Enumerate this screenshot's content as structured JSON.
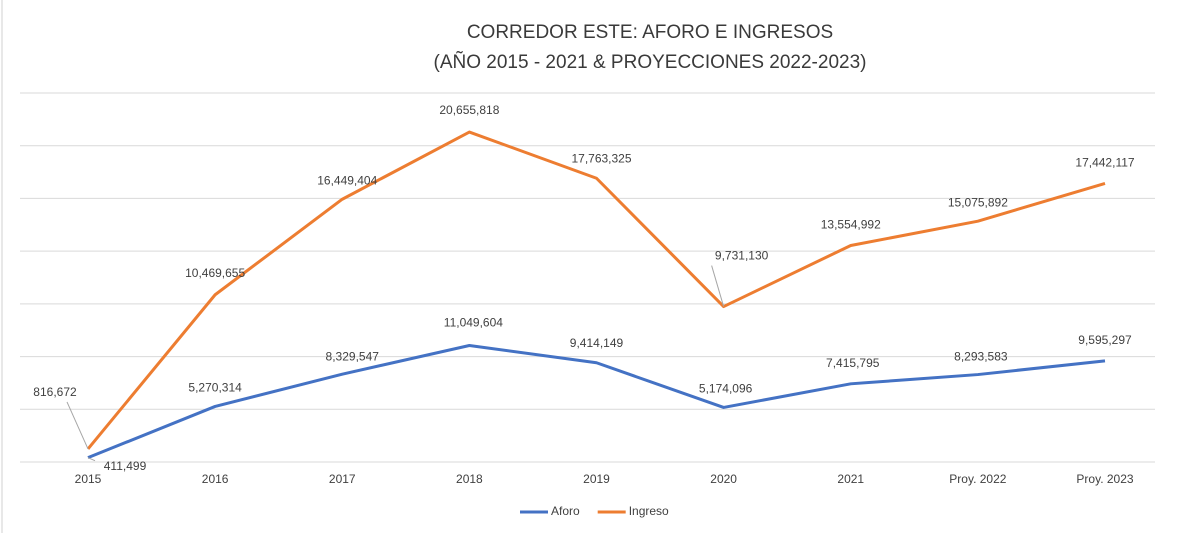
{
  "chart_data": {
    "type": "line",
    "title": "CORREDOR ESTE: AFORO E INGRESOS",
    "subtitle": "(AÑO 2015 - 2021 & PROYECCIONES 2022-2023)",
    "categories": [
      "2015",
      "2016",
      "2017",
      "2018",
      "2019",
      "2020",
      "2021",
      "Proy. 2022",
      "Proy. 2023"
    ],
    "series": [
      {
        "name": "Aforo",
        "color": "#4472c4",
        "axis": "y2",
        "values": [
          411499,
          5270314,
          8329547,
          11049604,
          9414149,
          5174096,
          7415795,
          8293583,
          9595297
        ],
        "value_labels": [
          "411,499",
          "5,270,314",
          "8,329,547",
          "11,049,604",
          "9,414,149",
          "5,174,096",
          "7,415,795",
          "8,293,583",
          "9,595,297"
        ]
      },
      {
        "name": "Ingreso",
        "color": "#ed7d31",
        "values": [
          816672,
          10469655,
          16449404,
          20655818,
          17763325,
          9731130,
          13554992,
          15075892,
          17442117
        ],
        "value_labels": [
          "816,672",
          "10,469,655",
          "16,449,404",
          "20,655,818",
          "17,763,325",
          "9,731,130",
          "13,554,992",
          "15,075,892",
          "17,442,117"
        ]
      }
    ],
    "ylim": [
      0,
      23100000
    ],
    "yticks": [
      0,
      3300000,
      6600000,
      9900000,
      13200000,
      16500000,
      19800000,
      23100000
    ],
    "y2lim": [
      0,
      35000000
    ],
    "grid": true,
    "legend": "bottom"
  }
}
